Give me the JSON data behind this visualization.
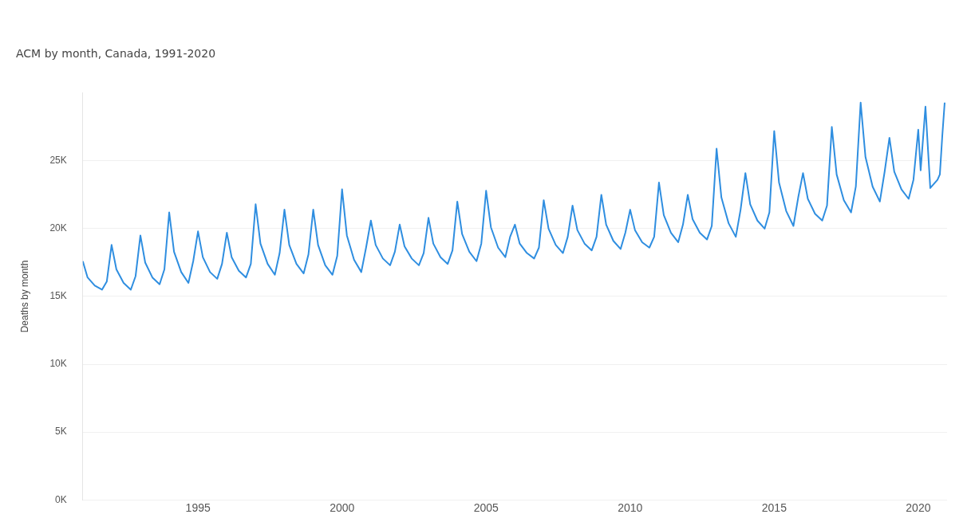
{
  "chart_data": {
    "type": "line",
    "title": "ACM by month, Canada, 1991-2020",
    "ylabel": "Deaths by month",
    "x": [
      1991,
      1991.167,
      1991.417,
      1991.667,
      1991.833,
      1992,
      1992.167,
      1992.417,
      1992.667,
      1992.833,
      1993,
      1993.167,
      1993.417,
      1993.667,
      1993.833,
      1994,
      1994.167,
      1994.417,
      1994.667,
      1994.833,
      1995,
      1995.167,
      1995.417,
      1995.667,
      1995.833,
      1996,
      1996.167,
      1996.417,
      1996.667,
      1996.833,
      1997,
      1997.167,
      1997.417,
      1997.667,
      1997.833,
      1998,
      1998.167,
      1998.417,
      1998.667,
      1998.833,
      1999,
      1999.167,
      1999.417,
      1999.667,
      1999.833,
      2000,
      2000.167,
      2000.417,
      2000.667,
      2000.833,
      2001,
      2001.167,
      2001.417,
      2001.667,
      2001.833,
      2002,
      2002.167,
      2002.417,
      2002.667,
      2002.833,
      2003,
      2003.167,
      2003.417,
      2003.667,
      2003.833,
      2004,
      2004.167,
      2004.417,
      2004.667,
      2004.833,
      2005,
      2005.167,
      2005.417,
      2005.667,
      2005.833,
      2006,
      2006.167,
      2006.417,
      2006.667,
      2006.833,
      2007,
      2007.167,
      2007.417,
      2007.667,
      2007.833,
      2008,
      2008.167,
      2008.417,
      2008.667,
      2008.833,
      2009,
      2009.167,
      2009.417,
      2009.667,
      2009.833,
      2010,
      2010.167,
      2010.417,
      2010.667,
      2010.833,
      2011,
      2011.167,
      2011.417,
      2011.667,
      2011.833,
      2012,
      2012.167,
      2012.417,
      2012.667,
      2012.833,
      2013,
      2013.167,
      2013.417,
      2013.667,
      2013.833,
      2014,
      2014.167,
      2014.417,
      2014.667,
      2014.833,
      2015,
      2015.167,
      2015.417,
      2015.667,
      2015.833,
      2016,
      2016.167,
      2016.417,
      2016.667,
      2016.833,
      2017,
      2017.167,
      2017.417,
      2017.667,
      2017.833,
      2018,
      2018.167,
      2018.417,
      2018.667,
      2018.833,
      2019,
      2019.167,
      2019.417,
      2019.667,
      2019.833,
      2020,
      2020.083,
      2020.25,
      2020.417,
      2020.667,
      2020.75,
      2020.833,
      2020.917
    ],
    "series": [
      {
        "color": "#2f8ee0",
        "values": [
          17600,
          16400,
          15800,
          15500,
          16100,
          18800,
          17000,
          16000,
          15500,
          16500,
          19500,
          17500,
          16400,
          15900,
          17000,
          21200,
          18300,
          16800,
          16000,
          17600,
          19800,
          17900,
          16800,
          16300,
          17400,
          19700,
          17900,
          16900,
          16400,
          17400,
          21800,
          18900,
          17400,
          16600,
          18200,
          21400,
          18800,
          17400,
          16700,
          18100,
          21400,
          18800,
          17300,
          16600,
          18000,
          22900,
          19500,
          17700,
          16800,
          18600,
          20600,
          18800,
          17800,
          17300,
          18300,
          20300,
          18700,
          17800,
          17300,
          18200,
          20800,
          18900,
          17900,
          17400,
          18400,
          22000,
          19600,
          18300,
          17600,
          18900,
          22800,
          20100,
          18600,
          17900,
          19400,
          20300,
          18900,
          18200,
          17800,
          18600,
          22100,
          20000,
          18800,
          18200,
          19400,
          21700,
          19900,
          18900,
          18400,
          19400,
          22500,
          20300,
          19100,
          18500,
          19700,
          21400,
          19900,
          19000,
          18600,
          19400,
          23400,
          21000,
          19700,
          19000,
          20300,
          22500,
          20700,
          19700,
          19200,
          20200,
          25900,
          22300,
          20400,
          19400,
          21400,
          24100,
          21800,
          20600,
          20000,
          21200,
          27200,
          23400,
          21300,
          20200,
          22300,
          24100,
          22200,
          21100,
          20600,
          21700,
          27500,
          24000,
          22100,
          21200,
          23100,
          29300,
          25300,
          23100,
          22000,
          24200,
          26700,
          24200,
          22900,
          22200,
          23600,
          27300,
          24300,
          29000,
          23000,
          23600,
          24000,
          26800,
          29300
        ]
      }
    ],
    "xlim": [
      1991,
      2021
    ],
    "xticks": [
      1995,
      2000,
      2005,
      2010,
      2015,
      2020
    ],
    "ylim": [
      0,
      30000
    ],
    "yticks": [
      {
        "value": 0,
        "label": "0K"
      },
      {
        "value": 5000,
        "label": "5K"
      },
      {
        "value": 10000,
        "label": "10K"
      },
      {
        "value": 15000,
        "label": "15K"
      },
      {
        "value": 20000,
        "label": "20K"
      },
      {
        "value": 25000,
        "label": "25K"
      }
    ],
    "grid": "y",
    "legend": false,
    "marker": "none",
    "line_style": "solid"
  }
}
